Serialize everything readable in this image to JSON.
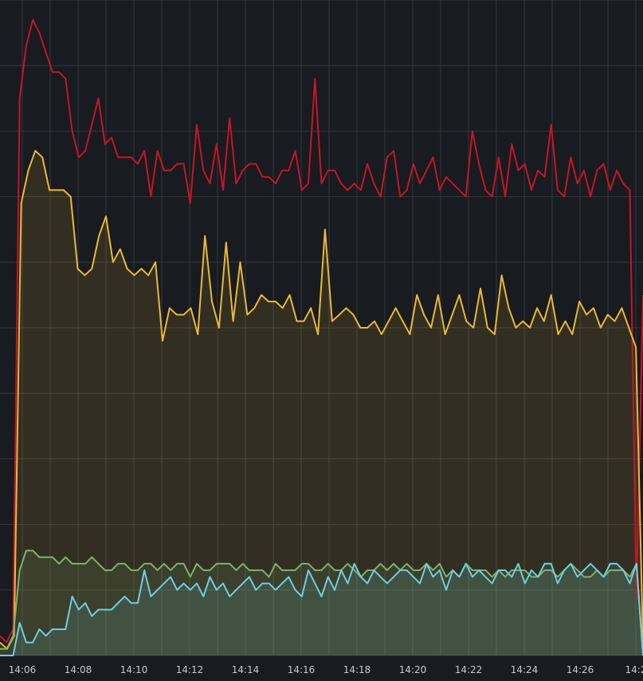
{
  "chart_data": {
    "type": "area",
    "x_tick_labels": [
      "14:06",
      "14:08",
      "14:10",
      "14:12",
      "14:14",
      "14:16",
      "14:18",
      "14:20",
      "14:22",
      "14:24",
      "14:26",
      "14:2"
    ],
    "ylim": [
      0,
      100
    ],
    "grid": true,
    "series": [
      {
        "color": "#c4162a",
        "fill": false,
        "values": [
          3,
          2,
          4,
          85,
          93,
          97,
          95,
          92,
          89,
          89,
          88,
          80,
          76,
          77,
          81,
          85,
          78,
          79,
          76,
          76,
          76,
          75,
          77,
          70,
          77,
          74,
          74,
          75,
          75,
          69,
          81,
          74,
          72,
          78,
          71,
          82,
          72,
          74,
          75,
          75,
          73,
          73,
          72,
          74,
          74,
          77,
          71,
          72,
          88,
          72,
          74,
          74,
          72,
          71,
          72,
          71,
          75,
          72,
          70,
          76,
          77,
          70,
          71,
          75,
          72,
          74,
          76,
          71,
          73,
          72,
          71,
          70,
          80,
          75,
          71,
          70,
          76,
          70,
          78,
          74,
          75,
          71,
          74,
          73,
          81,
          71,
          70,
          76,
          72,
          74,
          70,
          74,
          75,
          71,
          74,
          72,
          71,
          9,
          55
        ]
      },
      {
        "color": "#eab839",
        "fill": true,
        "values": [
          2,
          1,
          3,
          69,
          74,
          77,
          76,
          71,
          71,
          71,
          70,
          59,
          58,
          59,
          64,
          67,
          60,
          62,
          59,
          58,
          59,
          58,
          60,
          48,
          53,
          52,
          52,
          53,
          49,
          64,
          54,
          50,
          63,
          51,
          60,
          52,
          53,
          55,
          54,
          54,
          53,
          55,
          51,
          51,
          53,
          49,
          65,
          51,
          52,
          53,
          52,
          50,
          50,
          51,
          49,
          51,
          53,
          51,
          49,
          55,
          52,
          50,
          55,
          49,
          52,
          55,
          51,
          50,
          56,
          50,
          49,
          58,
          53,
          50,
          51,
          50,
          53,
          51,
          55,
          49,
          51,
          49,
          54,
          52,
          53,
          50,
          52,
          51,
          53,
          50,
          47,
          2
        ]
      },
      {
        "color": "#7eb26d",
        "fill": true,
        "values": [
          1,
          1,
          3,
          13,
          16,
          16,
          15,
          15,
          15,
          14,
          15,
          14,
          14,
          14,
          15,
          14,
          13,
          13,
          14,
          14,
          13,
          13,
          14,
          14,
          13,
          14,
          13,
          14,
          14,
          12,
          14,
          13,
          13,
          14,
          14,
          14,
          13,
          14,
          13,
          13,
          13,
          12,
          14,
          13,
          13,
          13,
          14,
          14,
          13,
          13,
          14,
          13,
          13,
          14,
          13,
          12,
          13,
          13,
          14,
          13,
          14,
          13,
          14,
          13,
          13,
          14,
          13,
          14,
          12,
          13,
          12,
          14,
          13,
          13,
          13,
          12,
          13,
          12,
          13,
          13,
          13,
          12,
          12,
          13,
          13,
          12,
          13,
          14,
          13,
          12,
          12,
          13,
          12,
          13,
          13,
          13,
          12,
          14,
          0
        ]
      },
      {
        "color": "#6ed0e0",
        "fill": true,
        "values": [
          0,
          0,
          0,
          5,
          2,
          2,
          4,
          3,
          4,
          4,
          4,
          9,
          7,
          8,
          6,
          7,
          7,
          7,
          8,
          9,
          8,
          8,
          13,
          9,
          10,
          11,
          12,
          10,
          11,
          10,
          11,
          9,
          12,
          10,
          11,
          9,
          10,
          11,
          12,
          10,
          11,
          11,
          10,
          11,
          12,
          10,
          9,
          13,
          11,
          9,
          12,
          10,
          13,
          11,
          14,
          12,
          11,
          13,
          12,
          11,
          12,
          13,
          13,
          12,
          11,
          14,
          12,
          13,
          10,
          13,
          12,
          14,
          12,
          13,
          12,
          11,
          13,
          13,
          12,
          14,
          11,
          13,
          12,
          14,
          14,
          11,
          13,
          14,
          12,
          13,
          14,
          13,
          12,
          14,
          14,
          13,
          11,
          14,
          0
        ]
      }
    ]
  }
}
